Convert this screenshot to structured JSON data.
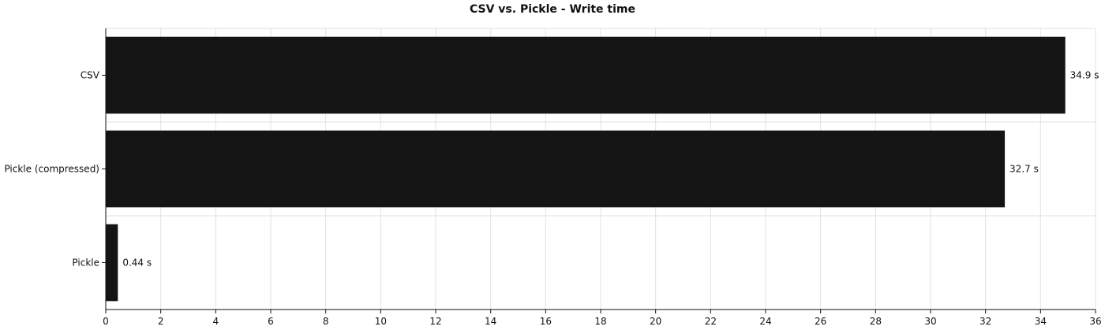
{
  "chart_data": {
    "type": "bar",
    "orientation": "horizontal",
    "title": "CSV vs. Pickle - Write time",
    "xlabel": "",
    "ylabel": "",
    "categories": [
      "CSV",
      "Pickle (compressed)",
      "Pickle"
    ],
    "values": [
      34.9,
      32.7,
      0.44
    ],
    "data_labels": [
      "34.9 s",
      "32.7 s",
      "0.44 s"
    ],
    "xlim": [
      0,
      36
    ],
    "xticks": [
      0,
      2,
      4,
      6,
      8,
      10,
      12,
      14,
      16,
      18,
      20,
      22,
      24,
      26,
      28,
      30,
      32,
      34,
      36
    ],
    "grid": true,
    "bar_color": "#141414"
  }
}
